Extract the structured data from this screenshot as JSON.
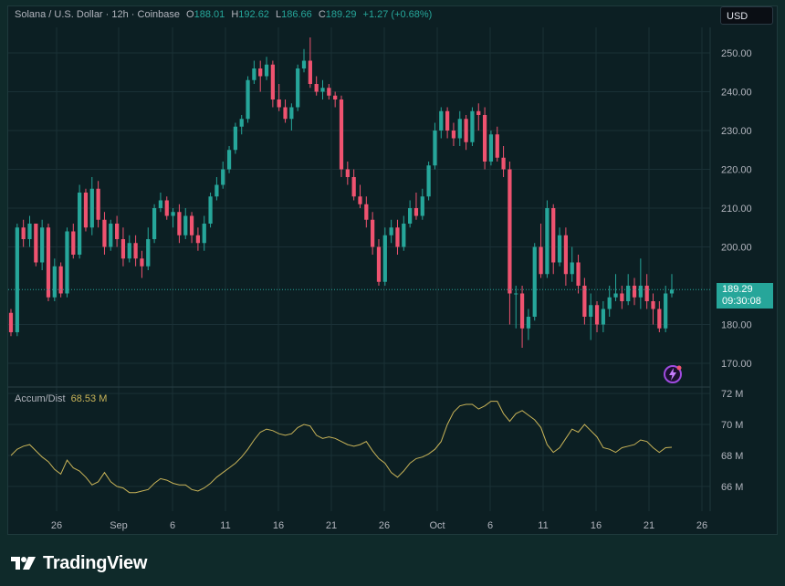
{
  "header": {
    "symbol": "Solana / U.S. Dollar · 12h · Coinbase",
    "o_key": "O",
    "o_val": "188.01",
    "h_key": "H",
    "h_val": "192.62",
    "l_key": "L",
    "l_val": "186.66",
    "c_key": "C",
    "c_val": "189.29",
    "change": "+1.27 (+0.68%)"
  },
  "currency_button": "USD",
  "price_badge": {
    "price": "189.29",
    "countdown": "09:30:08"
  },
  "indicator": {
    "name": "Accum/Dist",
    "value": "68.53 M"
  },
  "brand": {
    "name": "TradingView"
  },
  "colors": {
    "up": "#26a69a",
    "down": "#ef5370",
    "ad_line": "#c9b458",
    "background": "#0c1f23"
  },
  "icons": {
    "bolt": "lightning-bolt-icon",
    "logo": "tradingview-logo-icon"
  },
  "chart_data": [
    {
      "type": "candlestick",
      "title": "Solana / U.S. Dollar · 12h · Coinbase",
      "ylim": [
        165,
        255
      ],
      "yticks": [
        "250.00",
        "240.00",
        "230.00",
        "220.00",
        "210.00",
        "200.00",
        "180.00",
        "170.00"
      ],
      "xticks": [
        "26",
        "Sep",
        "6",
        "11",
        "16",
        "21",
        "26",
        "Oct",
        "6",
        "11",
        "16",
        "21",
        "26"
      ],
      "candles": [
        [
          183,
          178,
          184,
          177
        ],
        [
          178,
          205,
          206,
          177
        ],
        [
          205,
          202,
          207,
          200
        ],
        [
          202,
          206,
          208,
          200
        ],
        [
          206,
          196,
          206,
          195
        ],
        [
          196,
          205,
          207,
          194
        ],
        [
          205,
          187,
          206,
          186
        ],
        [
          187,
          195,
          197,
          186
        ],
        [
          195,
          188,
          196,
          187
        ],
        [
          188,
          204,
          205,
          187
        ],
        [
          204,
          198,
          206,
          197
        ],
        [
          198,
          214,
          216,
          197
        ],
        [
          214,
          205,
          215,
          204
        ],
        [
          205,
          215,
          218,
          203
        ],
        [
          215,
          207,
          217,
          205
        ],
        [
          207,
          200,
          209,
          198
        ],
        [
          200,
          206,
          207,
          199
        ],
        [
          206,
          202,
          208,
          200
        ],
        [
          202,
          197,
          205,
          195
        ],
        [
          197,
          201,
          203,
          196
        ],
        [
          201,
          197,
          203,
          195
        ],
        [
          197,
          195,
          199,
          192
        ],
        [
          195,
          202,
          205,
          194
        ],
        [
          202,
          210,
          211,
          201
        ],
        [
          210,
          212,
          214,
          209
        ],
        [
          212,
          208,
          213,
          207
        ],
        [
          208,
          209,
          210,
          205
        ],
        [
          209,
          203,
          211,
          201
        ],
        [
          203,
          208,
          210,
          202
        ],
        [
          208,
          203,
          209,
          201
        ],
        [
          203,
          201,
          205,
          199
        ],
        [
          201,
          206,
          208,
          199
        ],
        [
          206,
          213,
          214,
          205
        ],
        [
          213,
          216,
          218,
          212
        ],
        [
          216,
          220,
          222,
          215
        ],
        [
          220,
          225,
          226,
          219
        ],
        [
          225,
          231,
          232,
          224
        ],
        [
          231,
          233,
          234,
          229
        ],
        [
          233,
          243,
          244,
          232
        ],
        [
          243,
          246,
          248,
          242
        ],
        [
          246,
          244,
          248,
          240
        ],
        [
          244,
          247,
          249,
          243
        ],
        [
          247,
          238,
          248,
          236
        ],
        [
          238,
          236,
          242,
          235
        ],
        [
          236,
          233,
          238,
          232
        ],
        [
          233,
          236,
          237,
          230
        ],
        [
          236,
          246,
          247,
          235
        ],
        [
          246,
          248,
          251,
          245
        ],
        [
          248,
          242,
          254,
          241
        ],
        [
          242,
          240,
          244,
          239
        ],
        [
          240,
          241,
          243,
          238
        ],
        [
          241,
          239,
          242,
          238
        ],
        [
          239,
          238,
          240,
          236
        ],
        [
          238,
          220,
          239,
          218
        ],
        [
          220,
          218,
          222,
          216
        ],
        [
          218,
          213,
          220,
          212
        ],
        [
          213,
          211,
          216,
          210
        ],
        [
          211,
          207,
          213,
          205
        ],
        [
          207,
          200,
          209,
          198
        ],
        [
          200,
          191,
          202,
          190
        ],
        [
          191,
          203,
          205,
          190
        ],
        [
          203,
          205,
          207,
          201
        ],
        [
          205,
          200,
          207,
          198
        ],
        [
          200,
          206,
          208,
          199
        ],
        [
          206,
          210,
          212,
          205
        ],
        [
          210,
          208,
          214,
          207
        ],
        [
          208,
          213,
          215,
          207
        ],
        [
          213,
          221,
          222,
          212
        ],
        [
          221,
          230,
          232,
          220
        ],
        [
          230,
          235,
          236,
          228
        ],
        [
          235,
          230,
          236,
          228
        ],
        [
          230,
          228,
          232,
          226
        ],
        [
          228,
          233,
          235,
          226
        ],
        [
          233,
          227,
          234,
          225
        ],
        [
          227,
          235,
          236,
          226
        ],
        [
          235,
          234,
          237,
          230
        ],
        [
          234,
          222,
          236,
          220
        ],
        [
          222,
          229,
          230,
          221
        ],
        [
          229,
          223,
          231,
          222
        ],
        [
          223,
          220,
          226,
          218
        ],
        [
          220,
          188,
          222,
          180
        ],
        [
          188,
          188,
          190,
          179
        ],
        [
          188,
          179,
          190,
          174
        ],
        [
          179,
          182,
          184,
          176
        ],
        [
          182,
          200,
          201,
          181
        ],
        [
          200,
          193,
          206,
          192
        ],
        [
          193,
          210,
          212,
          192
        ],
        [
          210,
          196,
          211,
          193
        ],
        [
          196,
          203,
          205,
          195
        ],
        [
          203,
          193,
          205,
          190
        ],
        [
          193,
          196,
          200,
          191
        ],
        [
          196,
          190,
          198,
          188
        ],
        [
          190,
          182,
          192,
          180
        ],
        [
          182,
          185,
          188,
          176
        ],
        [
          185,
          180,
          186,
          178
        ],
        [
          180,
          184,
          186,
          178
        ],
        [
          184,
          187,
          190,
          182
        ],
        [
          187,
          188,
          193,
          186
        ],
        [
          188,
          186,
          190,
          184
        ],
        [
          186,
          190,
          193,
          185
        ],
        [
          190,
          187,
          192,
          185
        ],
        [
          187,
          190,
          197,
          184
        ],
        [
          190,
          186,
          193,
          184
        ],
        [
          186,
          184,
          188,
          180
        ],
        [
          184,
          179,
          186,
          178
        ],
        [
          179,
          188,
          190,
          178
        ],
        [
          188,
          189,
          193,
          187
        ]
      ]
    },
    {
      "type": "line",
      "title": "Accum/Dist",
      "ylabel": "M",
      "ylim": [
        64.7,
        72.3
      ],
      "yticks": [
        "72 M",
        "70 M",
        "68 M",
        "66 M"
      ],
      "values": [
        68.0,
        68.4,
        68.6,
        68.7,
        68.3,
        67.9,
        67.6,
        67.1,
        66.8,
        67.7,
        67.2,
        67.0,
        66.6,
        66.1,
        66.3,
        66.9,
        66.3,
        66.0,
        65.9,
        65.6,
        65.6,
        65.7,
        65.8,
        66.2,
        66.5,
        66.4,
        66.2,
        66.1,
        66.1,
        65.8,
        65.7,
        65.9,
        66.2,
        66.6,
        66.9,
        67.2,
        67.5,
        67.9,
        68.4,
        69.0,
        69.5,
        69.7,
        69.6,
        69.4,
        69.3,
        69.4,
        69.8,
        70.0,
        69.9,
        69.3,
        69.1,
        69.2,
        69.1,
        68.9,
        68.7,
        68.6,
        68.7,
        68.9,
        68.3,
        67.8,
        67.5,
        66.9,
        66.6,
        67.0,
        67.5,
        67.8,
        67.9,
        68.1,
        68.4,
        68.9,
        70.0,
        70.8,
        71.2,
        71.3,
        71.3,
        71.0,
        71.2,
        71.5,
        71.5,
        70.7,
        70.2,
        70.7,
        70.9,
        70.6,
        70.3,
        69.8,
        68.7,
        68.2,
        68.5,
        69.1,
        69.7,
        69.5,
        70.0,
        69.6,
        69.2,
        68.5,
        68.4,
        68.2,
        68.5,
        68.6,
        68.7,
        69.0,
        68.9,
        68.5,
        68.2,
        68.5,
        68.53
      ]
    }
  ]
}
